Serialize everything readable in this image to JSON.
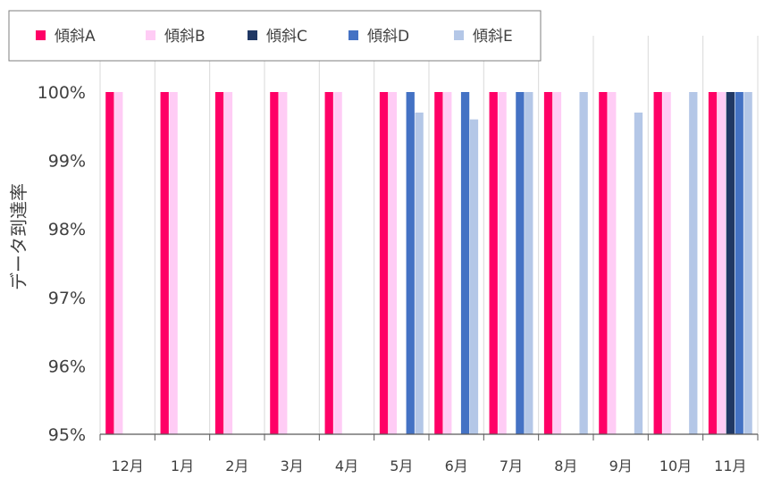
{
  "chart_data": {
    "type": "bar",
    "title": "",
    "xlabel": "",
    "ylabel": "データ到達率",
    "ylim": [
      95,
      100
    ],
    "ytick_labels": [
      "95%",
      "96%",
      "97%",
      "98%",
      "99%",
      "100%"
    ],
    "categories": [
      "12月",
      "1月",
      "2月",
      "3月",
      "4月",
      "5月",
      "6月",
      "7月",
      "8月",
      "9月",
      "10月",
      "11月"
    ],
    "series": [
      {
        "name": "傾斜A",
        "color": "#ff0066",
        "values": [
          100,
          100,
          100,
          100,
          100,
          100,
          100,
          100,
          100,
          100,
          100,
          100
        ]
      },
      {
        "name": "傾斜B",
        "color": "#ffccf5",
        "values": [
          100,
          100,
          100,
          100,
          100,
          100,
          100,
          100,
          100,
          100,
          100,
          100
        ]
      },
      {
        "name": "傾斜C",
        "color": "#203864",
        "values": [
          null,
          null,
          null,
          null,
          null,
          null,
          null,
          null,
          null,
          null,
          null,
          100
        ]
      },
      {
        "name": "傾斜D",
        "color": "#4472c4",
        "values": [
          null,
          null,
          null,
          null,
          null,
          100,
          100,
          100,
          null,
          null,
          null,
          100
        ]
      },
      {
        "name": "傾斜E",
        "color": "#b4c7e7",
        "values": [
          null,
          null,
          null,
          null,
          null,
          99.7,
          99.6,
          100,
          100,
          99.7,
          100,
          100
        ]
      }
    ],
    "grid": "vertical",
    "legend": "top-left, horizontal, boxed"
  }
}
